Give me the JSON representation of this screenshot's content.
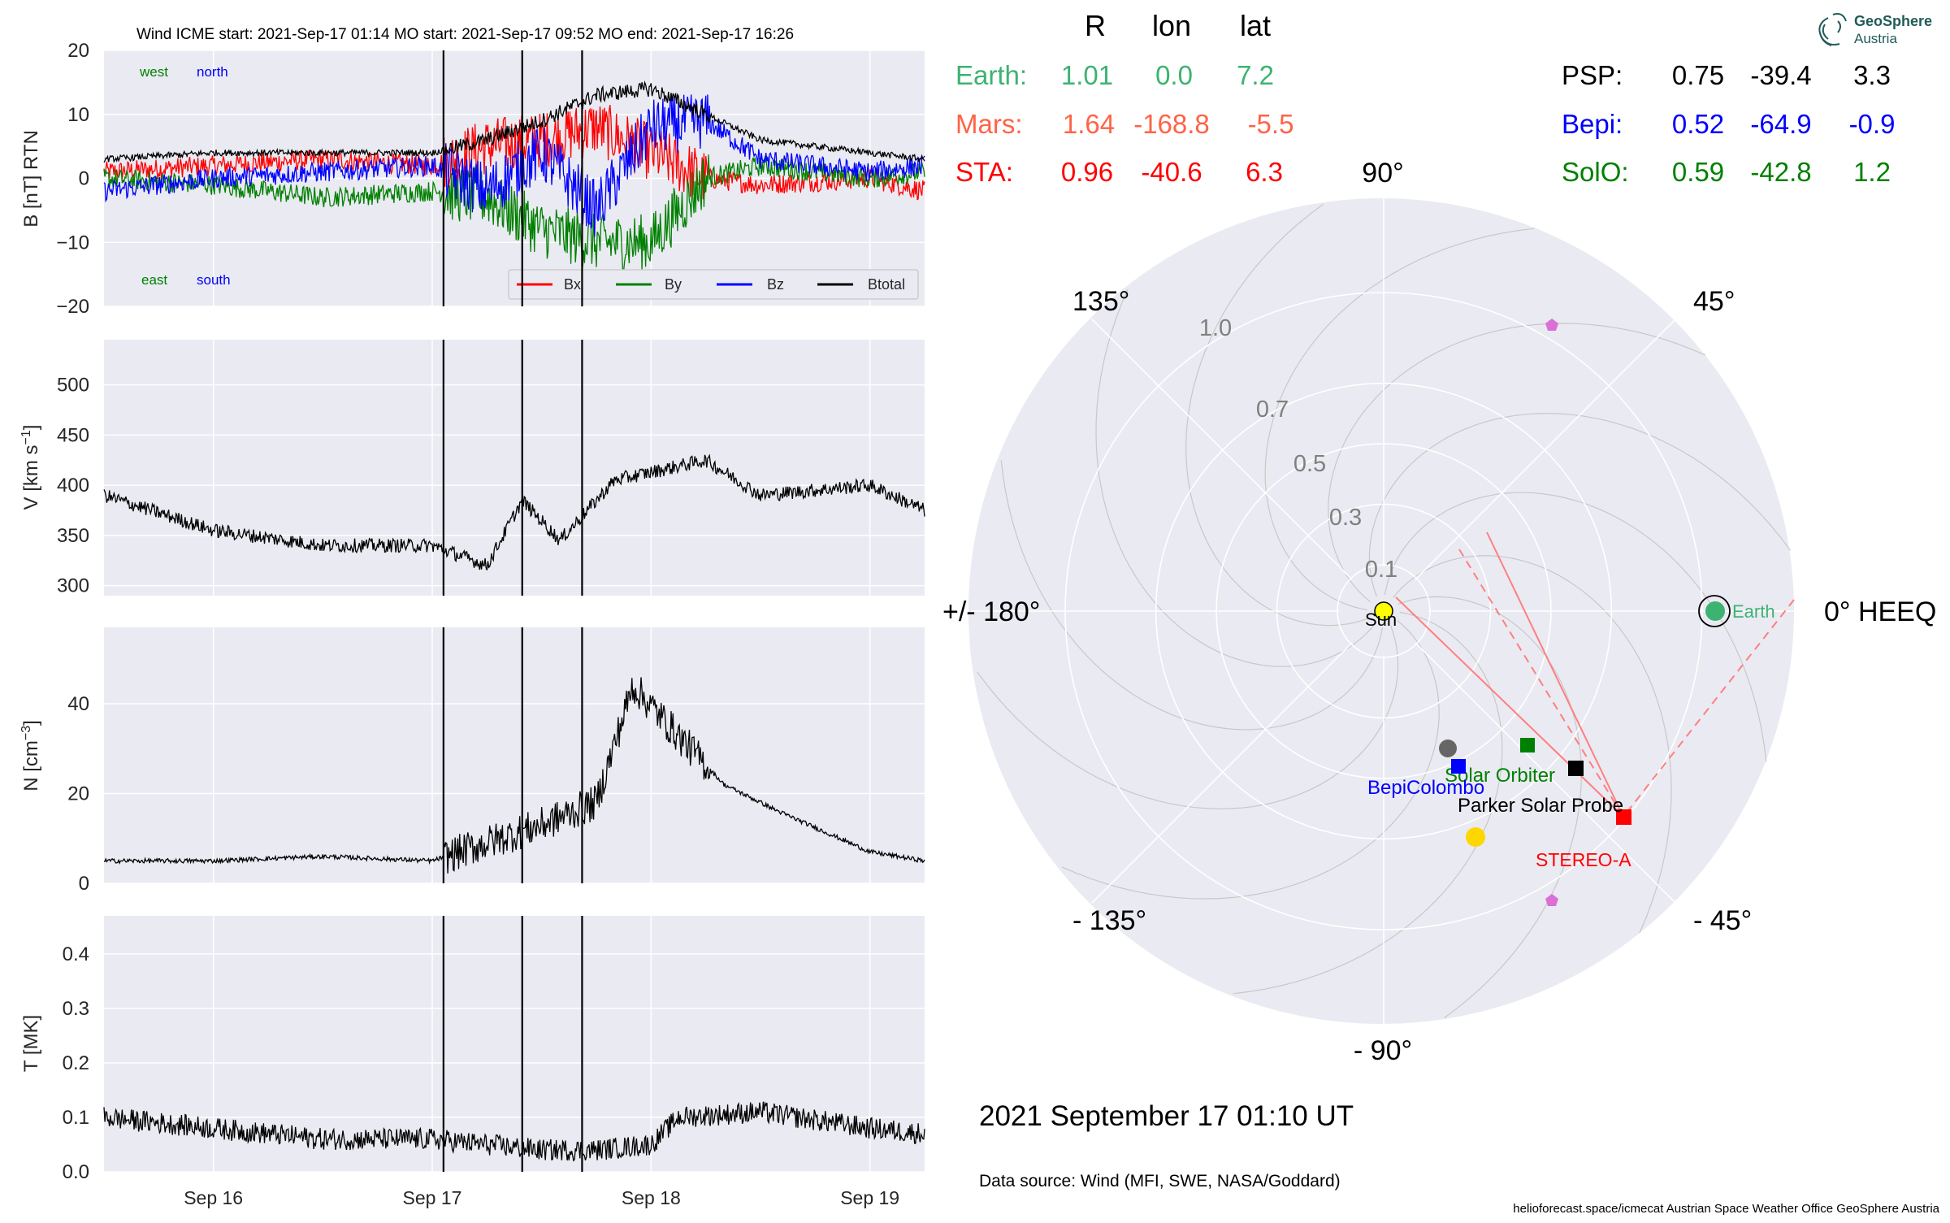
{
  "header": {
    "title": "Wind    ICME start: 2021-Sep-17 01:14   MO start: 2021-Sep-17 09:52   MO end: 2021-Sep-17 16:26"
  },
  "colors": {
    "panel_bg": "#eaeaf2",
    "grid": "#ffffff",
    "bx": "#ff0000",
    "by": "#008000",
    "bz": "#0000ff",
    "btotal": "#000000",
    "earth": "#3cb371",
    "mars": "#ff6347",
    "sta": "#ff0000",
    "psp": "#000000",
    "bepi": "#0000ff",
    "solo": "#008000"
  },
  "time_axis": {
    "start": "2021-09-15T12:00",
    "end": "2021-09-19T06:00",
    "ticks": [
      "Sep 16",
      "Sep 17",
      "Sep 18",
      "Sep 19"
    ]
  },
  "event_lines": [
    "2021-09-17T01:14",
    "2021-09-17T09:52",
    "2021-09-17T16:26"
  ],
  "panels": [
    {
      "id": "mag",
      "ylabel": "B [nT] RTN",
      "ylim": [
        -20,
        20
      ],
      "yticks": [
        "20",
        "10",
        "0",
        "−10",
        "−20"
      ],
      "notes": {
        "west": "west",
        "north": "north",
        "east": "east",
        "south": "south"
      },
      "legend": [
        "Bx",
        "By",
        "Bz",
        "Btotal"
      ]
    },
    {
      "id": "speed",
      "ylabel_main": "V [km s",
      "ylabel_sup": "−1",
      "ylabel_end": "]",
      "ylim": [
        290,
        545
      ],
      "yticks": [
        "500",
        "450",
        "400",
        "350",
        "300"
      ]
    },
    {
      "id": "density",
      "ylabel_main": "N [cm",
      "ylabel_sup": "−3",
      "ylabel_end": "]",
      "ylim": [
        0,
        57
      ],
      "yticks": [
        "40",
        "20",
        "0"
      ]
    },
    {
      "id": "temp",
      "ylabel": "T [MK]",
      "ylim": [
        0,
        0.47
      ],
      "yticks": [
        "0.4",
        "0.3",
        "0.2",
        "0.1",
        "0.0"
      ]
    }
  ],
  "chart_data": [
    {
      "type": "line",
      "name": "B [nT] RTN",
      "ylim": [
        -20,
        20
      ],
      "series": [
        {
          "name": "Bx",
          "x": [
            "2021-09-15T12:00",
            "2021-09-16T00:00",
            "2021-09-16T12:00",
            "2021-09-17T00:00",
            "2021-09-17T06:00",
            "2021-09-17T12:00",
            "2021-09-17T18:00",
            "2021-09-18T00:00",
            "2021-09-18T06:00",
            "2021-09-18T12:00",
            "2021-09-19T00:00",
            "2021-09-19T06:00"
          ],
          "values": [
            1,
            2,
            3,
            2,
            5,
            6,
            8,
            4,
            0,
            -1,
            0,
            -2
          ]
        },
        {
          "name": "By",
          "x": [
            "2021-09-15T12:00",
            "2021-09-16T00:00",
            "2021-09-16T12:00",
            "2021-09-17T00:00",
            "2021-09-17T06:00",
            "2021-09-17T12:00",
            "2021-09-17T18:00",
            "2021-09-18T00:00",
            "2021-09-18T06:00",
            "2021-09-18T12:00",
            "2021-09-19T00:00",
            "2021-09-19T06:00"
          ],
          "values": [
            0,
            -1,
            -3,
            -2,
            -3,
            -8,
            -10,
            -10,
            0,
            2,
            0,
            1
          ]
        },
        {
          "name": "Bz",
          "x": [
            "2021-09-15T12:00",
            "2021-09-16T00:00",
            "2021-09-16T12:00",
            "2021-09-17T00:00",
            "2021-09-17T06:00",
            "2021-09-17T12:00",
            "2021-09-17T18:00",
            "2021-09-18T00:00",
            "2021-09-18T06:00",
            "2021-09-18T12:00",
            "2021-09-19T00:00",
            "2021-09-19T06:00"
          ],
          "values": [
            -2,
            0,
            1,
            2,
            -2,
            4,
            -5,
            8,
            9,
            3,
            1,
            2
          ]
        },
        {
          "name": "Btotal",
          "x": [
            "2021-09-15T12:00",
            "2021-09-16T00:00",
            "2021-09-16T12:00",
            "2021-09-17T00:00",
            "2021-09-17T06:00",
            "2021-09-17T12:00",
            "2021-09-17T18:00",
            "2021-09-18T00:00",
            "2021-09-18T06:00",
            "2021-09-18T12:00",
            "2021-09-19T00:00",
            "2021-09-19T06:00"
          ],
          "values": [
            3,
            4,
            4,
            4,
            6,
            9,
            13,
            14,
            10,
            6,
            4,
            3
          ]
        }
      ]
    },
    {
      "type": "line",
      "name": "V",
      "ylim": [
        290,
        545
      ],
      "series": [
        {
          "name": "V",
          "x": [
            "2021-09-15T12:00",
            "2021-09-16T00:00",
            "2021-09-16T12:00",
            "2021-09-17T00:00",
            "2021-09-17T06:00",
            "2021-09-17T09:52",
            "2021-09-17T14:00",
            "2021-09-17T20:00",
            "2021-09-18T06:00",
            "2021-09-18T12:00",
            "2021-09-19T00:00",
            "2021-09-19T06:00"
          ],
          "values": [
            390,
            355,
            340,
            340,
            320,
            385,
            345,
            405,
            425,
            390,
            400,
            375
          ]
        }
      ]
    },
    {
      "type": "line",
      "name": "N",
      "ylim": [
        0,
        57
      ],
      "series": [
        {
          "name": "N",
          "x": [
            "2021-09-15T12:00",
            "2021-09-16T00:00",
            "2021-09-16T12:00",
            "2021-09-17T00:00",
            "2021-09-17T06:00",
            "2021-09-17T12:00",
            "2021-09-17T18:00",
            "2021-09-17T22:00",
            "2021-09-18T02:00",
            "2021-09-18T08:00",
            "2021-09-18T14:00",
            "2021-09-19T00:00",
            "2021-09-19T06:00"
          ],
          "values": [
            5,
            5,
            6,
            5,
            9,
            13,
            18,
            44,
            35,
            22,
            16,
            7,
            5
          ]
        }
      ]
    },
    {
      "type": "line",
      "name": "T",
      "ylim": [
        0,
        0.47
      ],
      "series": [
        {
          "name": "T",
          "x": [
            "2021-09-15T12:00",
            "2021-09-16T00:00",
            "2021-09-16T12:00",
            "2021-09-17T00:00",
            "2021-09-17T06:00",
            "2021-09-17T12:00",
            "2021-09-17T18:00",
            "2021-09-18T00:00",
            "2021-09-18T03:00",
            "2021-09-18T12:00",
            "2021-09-19T00:00",
            "2021-09-19T06:00"
          ],
          "values": [
            0.1,
            0.08,
            0.06,
            0.06,
            0.05,
            0.04,
            0.04,
            0.05,
            0.1,
            0.11,
            0.08,
            0.07
          ]
        }
      ]
    }
  ],
  "table": {
    "headers": [
      "R",
      "lon",
      "lat"
    ],
    "rows": [
      {
        "name": "Earth:",
        "R": "1.01",
        "lon": "0.0",
        "lat": "7.2",
        "color": "#3cb371"
      },
      {
        "name": "Mars:",
        "R": "1.64",
        "lon": "-168.8",
        "lat": "-5.5",
        "color": "#ff6347"
      },
      {
        "name": "STA:",
        "R": "0.96",
        "lon": "-40.6",
        "lat": "6.3",
        "color": "#ff0000"
      },
      {
        "name": "PSP:",
        "R": "0.75",
        "lon": "-39.4",
        "lat": "3.3",
        "color": "#000000"
      },
      {
        "name": "Bepi:",
        "R": "0.52",
        "lon": "-64.9",
        "lat": "-0.9",
        "color": "#0000ff"
      },
      {
        "name": "SolO:",
        "R": "0.59",
        "lon": "-42.8",
        "lat": "1.2",
        "color": "#008000"
      }
    ]
  },
  "polar": {
    "angle_labels": {
      "a0": "0° HEEQ",
      "a45": "45°",
      "a90": "90°",
      "a135": "135°",
      "a180": "+/- 180°",
      "am135": "- 135°",
      "am90": "- 90°",
      "am45": "- 45°"
    },
    "radial_ticks": [
      {
        "r": 0.1,
        "label": "0.1"
      },
      {
        "r": 0.3,
        "label": "0.3"
      },
      {
        "r": 0.5,
        "label": "0.5"
      },
      {
        "r": 0.7,
        "label": "0.7"
      },
      {
        "r": 1.0,
        "label": "1.0"
      }
    ],
    "bodies": {
      "sun": "Sun",
      "earth": "Earth",
      "sta": "STEREO-A",
      "psp": "Parker Solar Probe",
      "bepi": "BepiColombo",
      "solo": "Solar Orbiter"
    }
  },
  "footer": {
    "timestamp": "2021 September 17  01:10 UT",
    "source": "Data source: Wind (MFI, SWE, NASA/Goddard)",
    "credits": "helioforecast.space/icmecat   Austrian Space Weather Office   GeoSphere Austria"
  },
  "logo": {
    "line1": "GeoSphere",
    "line2": "Austria"
  }
}
